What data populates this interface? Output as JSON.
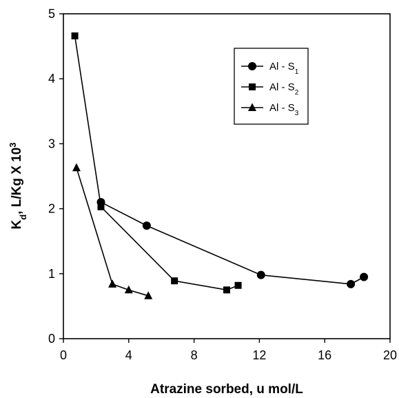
{
  "chart_data": {
    "type": "line",
    "title": "",
    "xlabel": "Atrazine sorbed, u mol/L",
    "ylabel": {
      "parts": [
        {
          "text": "K",
          "style": "normal"
        },
        {
          "text": "d",
          "style": "sub"
        },
        {
          "text": ", L/Kg X 10",
          "style": "normal"
        },
        {
          "text": "3",
          "style": "sup"
        }
      ]
    },
    "xlim": [
      0,
      20
    ],
    "ylim": [
      0,
      5
    ],
    "xticks": [
      "0",
      "4",
      "8",
      "12",
      "16",
      "20"
    ],
    "yticks": [
      "0",
      "1",
      "2",
      "3",
      "4",
      "5"
    ],
    "grid": false,
    "legend_position": "top-right",
    "series": [
      {
        "name": "Al - S1",
        "legend_base": "Al - S",
        "legend_sub": "1",
        "marker": "circle",
        "x": [
          2.3,
          5.1,
          12.1,
          17.6,
          18.4
        ],
        "y": [
          2.1,
          1.74,
          0.98,
          0.84,
          0.95
        ]
      },
      {
        "name": "Al - S2",
        "legend_base": "Al - S",
        "legend_sub": "2",
        "marker": "square",
        "x": [
          0.7,
          2.3,
          6.8,
          10.0,
          10.7
        ],
        "y": [
          4.66,
          2.03,
          0.89,
          0.75,
          0.82
        ]
      },
      {
        "name": "Al - S3",
        "legend_base": "Al - S",
        "legend_sub": "3",
        "marker": "triangle",
        "x": [
          0.8,
          3.0,
          4.0,
          5.2
        ],
        "y": [
          2.63,
          0.84,
          0.75,
          0.66
        ]
      }
    ]
  }
}
